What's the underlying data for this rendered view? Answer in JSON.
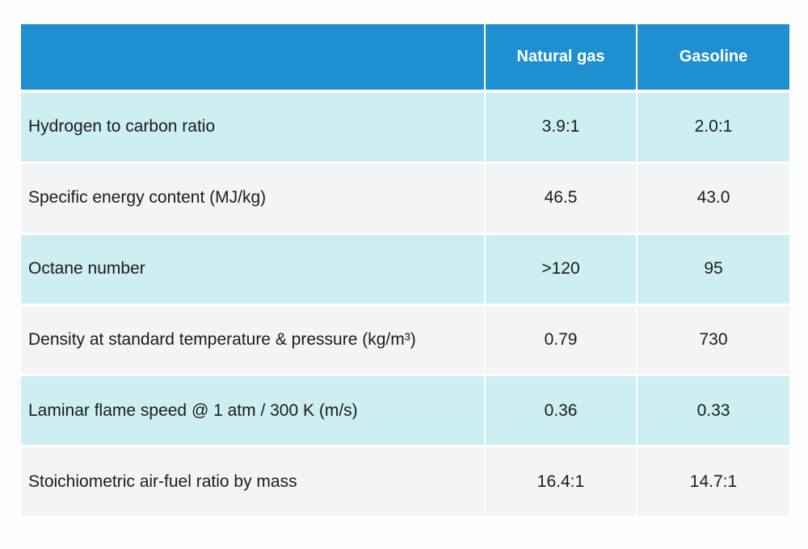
{
  "table": {
    "columns": [
      "",
      "Natural gas",
      "Gasoline"
    ],
    "rows": [
      {
        "property": "Hydrogen to carbon ratio",
        "natural_gas": "3.9:1",
        "gasoline": "2.0:1"
      },
      {
        "property": "Specific energy content (MJ/kg)",
        "natural_gas": "46.5",
        "gasoline": "43.0"
      },
      {
        "property": "Octane number",
        "natural_gas": ">120",
        "gasoline": "95"
      },
      {
        "property": "Density at standard temperature & pressure (kg/m³)",
        "natural_gas": "0.79",
        "gasoline": "730"
      },
      {
        "property": "Laminar flame speed @ 1 atm / 300 K (m/s)",
        "natural_gas": "0.36",
        "gasoline": "0.33"
      },
      {
        "property": "Stoichiometric air-fuel ratio by mass",
        "natural_gas": "16.4:1",
        "gasoline": "14.7:1"
      }
    ]
  },
  "colors": {
    "header": "#1e8fd0",
    "row_tinted": "#cdeef2",
    "row_plain": "#f3f4f6"
  }
}
